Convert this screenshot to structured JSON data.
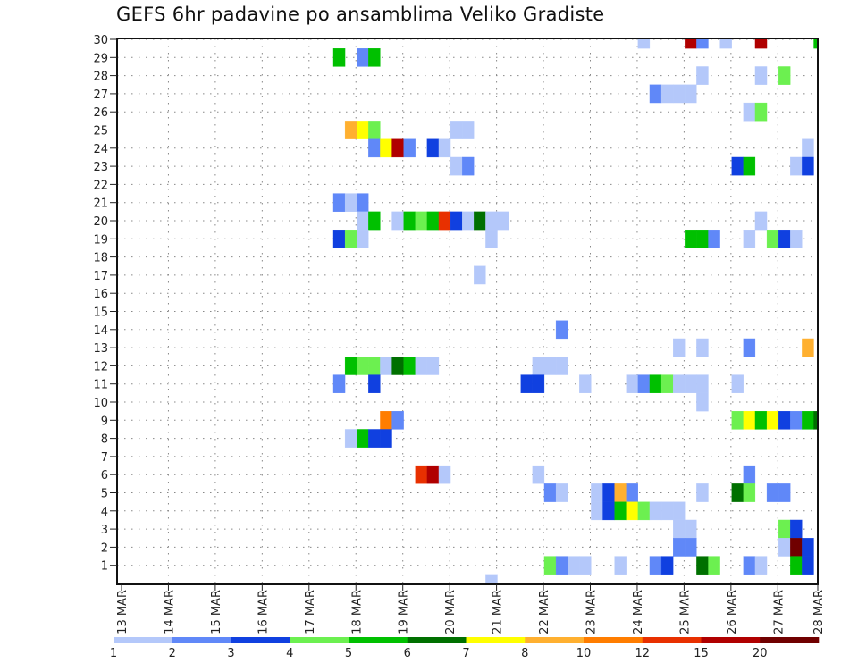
{
  "chart_data": {
    "type": "heatmap",
    "title": "GEFS 6hr padavine po ansamblima Veliko Gradiste",
    "xlabel": "",
    "ylabel": "",
    "x_tick_labels": [
      "13 MAR",
      "14 MAR",
      "15 MAR",
      "16 MAR",
      "17 MAR",
      "18 MAR",
      "19 MAR",
      "20 MAR",
      "21 MAR",
      "22 MAR",
      "23 MAR",
      "24 MAR",
      "25 MAR",
      "26 MAR",
      "27 MAR",
      "28 MAR"
    ],
    "x_step": "6hr",
    "y_tick_labels": [
      "1",
      "2",
      "3",
      "4",
      "5",
      "6",
      "7",
      "8",
      "9",
      "10",
      "11",
      "12",
      "13",
      "14",
      "15",
      "16",
      "17",
      "18",
      "19",
      "20",
      "21",
      "22",
      "23",
      "24",
      "25",
      "26",
      "27",
      "28",
      "29",
      "30"
    ],
    "grid": true,
    "legend": {
      "placement": "bottom",
      "labels": [
        "1",
        "2",
        "3",
        "4",
        "5",
        "6",
        "7",
        "8",
        "10",
        "12",
        "15",
        "20"
      ],
      "colors": [
        "#b4c8fa",
        "#6088f8",
        "#1040e0",
        "#6cf050",
        "#00c000",
        "#007000",
        "#ffff00",
        "#ffb030",
        "#ff7d00",
        "#e83000",
        "#b00000",
        "#700000"
      ]
    },
    "cells_format": "[time_step_6h_from_13MAR_00, member, color_bin]",
    "cells": [
      [
        44,
        30,
        0
      ],
      [
        48,
        30,
        10
      ],
      [
        49,
        30,
        1
      ],
      [
        51,
        30,
        0
      ],
      [
        54,
        30,
        10
      ],
      [
        59,
        30,
        4
      ],
      [
        18,
        29,
        4
      ],
      [
        20,
        29,
        1
      ],
      [
        21,
        29,
        4
      ],
      [
        49,
        28,
        0
      ],
      [
        54,
        28,
        0
      ],
      [
        56,
        28,
        3
      ],
      [
        45,
        27,
        1
      ],
      [
        46,
        27,
        0
      ],
      [
        47,
        27,
        0
      ],
      [
        48,
        27,
        0
      ],
      [
        53,
        26,
        0
      ],
      [
        54,
        26,
        3
      ],
      [
        19,
        25,
        7
      ],
      [
        20,
        25,
        6
      ],
      [
        21,
        25,
        3
      ],
      [
        28,
        25,
        0
      ],
      [
        29,
        25,
        0
      ],
      [
        21,
        24,
        1
      ],
      [
        22,
        24,
        6
      ],
      [
        23,
        24,
        10
      ],
      [
        24,
        24,
        1
      ],
      [
        26,
        24,
        2
      ],
      [
        27,
        24,
        0
      ],
      [
        58,
        24,
        0
      ],
      [
        28,
        23,
        0
      ],
      [
        29,
        23,
        1
      ],
      [
        52,
        23,
        2
      ],
      [
        53,
        23,
        4
      ],
      [
        57,
        23,
        0
      ],
      [
        58,
        23,
        2
      ],
      [
        18,
        21,
        1
      ],
      [
        19,
        21,
        0
      ],
      [
        20,
        21,
        1
      ],
      [
        20,
        20,
        0
      ],
      [
        21,
        20,
        4
      ],
      [
        23,
        20,
        0
      ],
      [
        24,
        20,
        4
      ],
      [
        25,
        20,
        3
      ],
      [
        26,
        20,
        4
      ],
      [
        27,
        20,
        9
      ],
      [
        28,
        20,
        2
      ],
      [
        29,
        20,
        0
      ],
      [
        30,
        20,
        5
      ],
      [
        31,
        20,
        0
      ],
      [
        32,
        20,
        0
      ],
      [
        54,
        20,
        0
      ],
      [
        18,
        19,
        2
      ],
      [
        19,
        19,
        3
      ],
      [
        20,
        19,
        0
      ],
      [
        31,
        19,
        0
      ],
      [
        48,
        19,
        4
      ],
      [
        49,
        19,
        4
      ],
      [
        50,
        19,
        1
      ],
      [
        53,
        19,
        0
      ],
      [
        55,
        19,
        3
      ],
      [
        56,
        19,
        2
      ],
      [
        57,
        19,
        0
      ],
      [
        30,
        17,
        0
      ],
      [
        37,
        14,
        1
      ],
      [
        47,
        13,
        0
      ],
      [
        49,
        13,
        0
      ],
      [
        53,
        13,
        1
      ],
      [
        58,
        13,
        7
      ],
      [
        19,
        12,
        4
      ],
      [
        20,
        12,
        3
      ],
      [
        21,
        12,
        3
      ],
      [
        22,
        12,
        0
      ],
      [
        23,
        12,
        5
      ],
      [
        24,
        12,
        4
      ],
      [
        25,
        12,
        0
      ],
      [
        26,
        12,
        0
      ],
      [
        35,
        12,
        0
      ],
      [
        36,
        12,
        0
      ],
      [
        37,
        12,
        0
      ],
      [
        18,
        11,
        1
      ],
      [
        21,
        11,
        2
      ],
      [
        34,
        11,
        2
      ],
      [
        35,
        11,
        2
      ],
      [
        39,
        11,
        0
      ],
      [
        43,
        11,
        0
      ],
      [
        44,
        11,
        1
      ],
      [
        45,
        11,
        4
      ],
      [
        46,
        11,
        3
      ],
      [
        47,
        11,
        0
      ],
      [
        48,
        11,
        0
      ],
      [
        49,
        11,
        0
      ],
      [
        52,
        11,
        0
      ],
      [
        49,
        10,
        0
      ],
      [
        22,
        9,
        8
      ],
      [
        23,
        9,
        1
      ],
      [
        52,
        9,
        3
      ],
      [
        53,
        9,
        6
      ],
      [
        54,
        9,
        4
      ],
      [
        55,
        9,
        6
      ],
      [
        56,
        9,
        2
      ],
      [
        57,
        9,
        1
      ],
      [
        58,
        9,
        4
      ],
      [
        59,
        9,
        5
      ],
      [
        19,
        8,
        0
      ],
      [
        20,
        8,
        4
      ],
      [
        21,
        8,
        2
      ],
      [
        22,
        8,
        2
      ],
      [
        25,
        6,
        9
      ],
      [
        26,
        6,
        10
      ],
      [
        27,
        6,
        0
      ],
      [
        35,
        6,
        0
      ],
      [
        53,
        6,
        1
      ],
      [
        36,
        5,
        1
      ],
      [
        37,
        5,
        0
      ],
      [
        40,
        5,
        0
      ],
      [
        41,
        5,
        2
      ],
      [
        42,
        5,
        7
      ],
      [
        43,
        5,
        1
      ],
      [
        49,
        5,
        0
      ],
      [
        52,
        5,
        5
      ],
      [
        53,
        5,
        3
      ],
      [
        55,
        5,
        1
      ],
      [
        56,
        5,
        1
      ],
      [
        40,
        4,
        0
      ],
      [
        41,
        4,
        2
      ],
      [
        42,
        4,
        4
      ],
      [
        43,
        4,
        6
      ],
      [
        44,
        4,
        3
      ],
      [
        45,
        4,
        0
      ],
      [
        46,
        4,
        0
      ],
      [
        47,
        4,
        0
      ],
      [
        47,
        3,
        0
      ],
      [
        48,
        3,
        0
      ],
      [
        56,
        3,
        3
      ],
      [
        57,
        3,
        2
      ],
      [
        47,
        2,
        1
      ],
      [
        48,
        2,
        1
      ],
      [
        56,
        2,
        0
      ],
      [
        57,
        2,
        11
      ],
      [
        58,
        2,
        2
      ],
      [
        36,
        1,
        3
      ],
      [
        37,
        1,
        1
      ],
      [
        38,
        1,
        0
      ],
      [
        39,
        1,
        0
      ],
      [
        42,
        1,
        0
      ],
      [
        45,
        1,
        1
      ],
      [
        46,
        1,
        2
      ],
      [
        49,
        1,
        5
      ],
      [
        50,
        1,
        3
      ],
      [
        53,
        1,
        1
      ],
      [
        54,
        1,
        0
      ],
      [
        57,
        1,
        4
      ],
      [
        58,
        1,
        2
      ],
      [
        31,
        0,
        0
      ]
    ]
  }
}
